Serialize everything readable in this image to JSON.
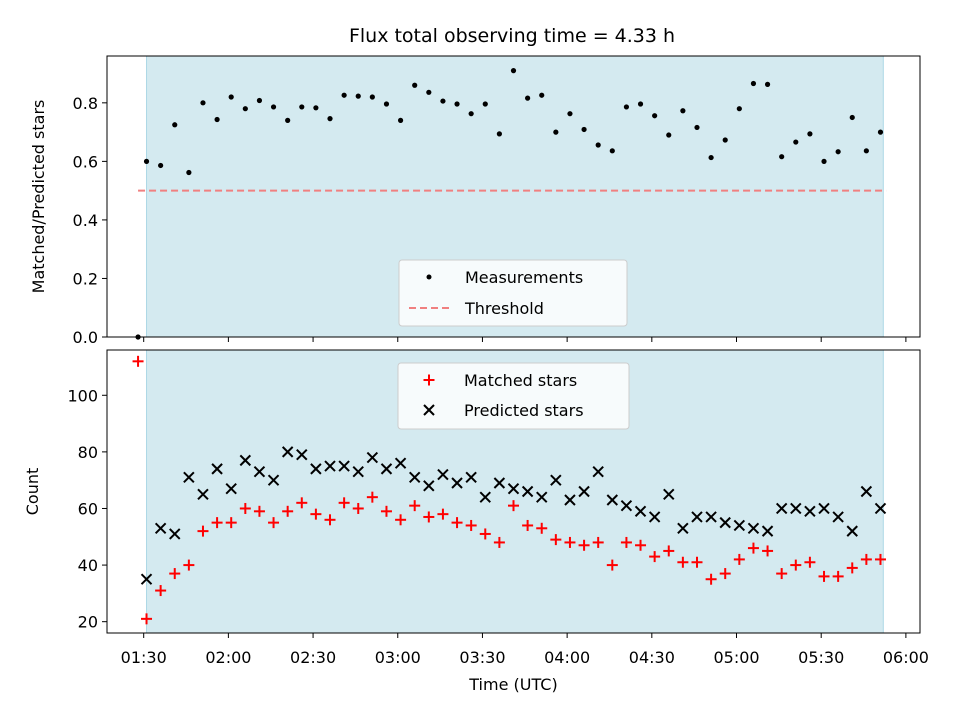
{
  "chart_data": {
    "type": "scatter",
    "title": "Flux total observing time = 4.33 h",
    "xlabel": "Time (UTC)",
    "x_ticks": [
      "01:30",
      "02:00",
      "02:30",
      "03:00",
      "03:30",
      "04:00",
      "04:30",
      "05:00",
      "05:30",
      "06:00"
    ],
    "x_range": [
      "01:17",
      "06:05"
    ],
    "observing_window": {
      "start": "01:31",
      "end": "05:52",
      "color": "#d4eaf0"
    },
    "panels": [
      {
        "name": "ratio",
        "ylabel": "Matched/Predicted stars",
        "ylim": [
          0,
          0.96
        ],
        "y_ticks": [
          "0.0",
          "0.2",
          "0.4",
          "0.6",
          "0.8"
        ],
        "legend": {
          "location": "lower center",
          "entries": [
            "Measurements",
            "Threshold"
          ]
        },
        "series": [
          {
            "name": "Measurements",
            "marker": "dot",
            "color": "#000000",
            "points": [
              [
                "01:28",
                0.0
              ],
              [
                "01:31",
                0.6
              ],
              [
                "01:36",
                0.586
              ],
              [
                "01:41",
                0.725
              ],
              [
                "01:46",
                0.562
              ],
              [
                "01:51",
                0.8
              ],
              [
                "01:56",
                0.743
              ],
              [
                "02:01",
                0.82
              ],
              [
                "02:06",
                0.78
              ],
              [
                "02:11",
                0.808
              ],
              [
                "02:16",
                0.786
              ],
              [
                "02:21",
                0.74
              ],
              [
                "02:26",
                0.786
              ],
              [
                "02:31",
                0.783
              ],
              [
                "02:36",
                0.746
              ],
              [
                "02:41",
                0.826
              ],
              [
                "02:46",
                0.823
              ],
              [
                "02:51",
                0.82
              ],
              [
                "02:56",
                0.796
              ],
              [
                "03:01",
                0.74
              ],
              [
                "03:06",
                0.86
              ],
              [
                "03:11",
                0.836
              ],
              [
                "03:16",
                0.806
              ],
              [
                "03:21",
                0.796
              ],
              [
                "03:26",
                0.763
              ],
              [
                "03:31",
                0.796
              ],
              [
                "03:36",
                0.694
              ],
              [
                "03:41",
                0.91
              ],
              [
                "03:46",
                0.816
              ],
              [
                "03:51",
                0.826
              ],
              [
                "03:56",
                0.7
              ],
              [
                "04:01",
                0.763
              ],
              [
                "04:06",
                0.709
              ],
              [
                "04:11",
                0.656
              ],
              [
                "04:16",
                0.636
              ],
              [
                "04:21",
                0.786
              ],
              [
                "04:26",
                0.796
              ],
              [
                "04:31",
                0.756
              ],
              [
                "04:36",
                0.69
              ],
              [
                "04:41",
                0.773
              ],
              [
                "04:46",
                0.716
              ],
              [
                "04:51",
                0.613
              ],
              [
                "04:56",
                0.673
              ],
              [
                "05:01",
                0.78
              ],
              [
                "05:06",
                0.866
              ],
              [
                "05:11",
                0.863
              ],
              [
                "05:16",
                0.616
              ],
              [
                "05:21",
                0.666
              ],
              [
                "05:26",
                0.694
              ],
              [
                "05:31",
                0.6
              ],
              [
                "05:36",
                0.633
              ],
              [
                "05:41",
                0.75
              ],
              [
                "05:46",
                0.636
              ],
              [
                "05:51",
                0.7
              ]
            ]
          },
          {
            "name": "Threshold",
            "style": "dashed-line",
            "color": "#f08080",
            "x_range": [
              "01:28",
              "05:53"
            ],
            "y": 0.5
          }
        ]
      },
      {
        "name": "counts",
        "ylabel": "Count",
        "ylim": [
          16,
          116
        ],
        "y_ticks": [
          "20",
          "40",
          "60",
          "80",
          "100"
        ],
        "legend": {
          "location": "upper center",
          "entries": [
            "Matched stars",
            "Predicted stars"
          ]
        },
        "series": [
          {
            "name": "Matched stars",
            "marker": "plus",
            "color": "#ff0000",
            "points": [
              [
                "01:28",
                112
              ],
              [
                "01:31",
                21
              ],
              [
                "01:36",
                31
              ],
              [
                "01:41",
                37
              ],
              [
                "01:46",
                40
              ],
              [
                "01:51",
                52
              ],
              [
                "01:56",
                55
              ],
              [
                "02:01",
                55
              ],
              [
                "02:06",
                60
              ],
              [
                "02:11",
                59
              ],
              [
                "02:16",
                55
              ],
              [
                "02:21",
                59
              ],
              [
                "02:26",
                62
              ],
              [
                "02:31",
                58
              ],
              [
                "02:36",
                56
              ],
              [
                "02:41",
                62
              ],
              [
                "02:46",
                60
              ],
              [
                "02:51",
                64
              ],
              [
                "02:56",
                59
              ],
              [
                "03:01",
                56
              ],
              [
                "03:06",
                61
              ],
              [
                "03:11",
                57
              ],
              [
                "03:16",
                58
              ],
              [
                "03:21",
                55
              ],
              [
                "03:26",
                54
              ],
              [
                "03:31",
                51
              ],
              [
                "03:36",
                48
              ],
              [
                "03:41",
                61
              ],
              [
                "03:46",
                54
              ],
              [
                "03:51",
                53
              ],
              [
                "03:56",
                49
              ],
              [
                "04:01",
                48
              ],
              [
                "04:06",
                47
              ],
              [
                "04:11",
                48
              ],
              [
                "04:16",
                40
              ],
              [
                "04:21",
                48
              ],
              [
                "04:26",
                47
              ],
              [
                "04:31",
                43
              ],
              [
                "04:36",
                45
              ],
              [
                "04:41",
                41
              ],
              [
                "04:46",
                41
              ],
              [
                "04:51",
                35
              ],
              [
                "04:56",
                37
              ],
              [
                "05:01",
                42
              ],
              [
                "05:06",
                46
              ],
              [
                "05:11",
                45
              ],
              [
                "05:16",
                37
              ],
              [
                "05:21",
                40
              ],
              [
                "05:26",
                41
              ],
              [
                "05:31",
                36
              ],
              [
                "05:36",
                36
              ],
              [
                "05:41",
                39
              ],
              [
                "05:46",
                42
              ],
              [
                "05:51",
                42
              ]
            ]
          },
          {
            "name": "Predicted stars",
            "marker": "x",
            "color": "#000000",
            "points": [
              [
                "01:31",
                35
              ],
              [
                "01:36",
                53
              ],
              [
                "01:41",
                51
              ],
              [
                "01:46",
                71
              ],
              [
                "01:51",
                65
              ],
              [
                "01:56",
                74
              ],
              [
                "02:01",
                67
              ],
              [
                "02:06",
                77
              ],
              [
                "02:11",
                73
              ],
              [
                "02:16",
                70
              ],
              [
                "02:21",
                80
              ],
              [
                "02:26",
                79
              ],
              [
                "02:31",
                74
              ],
              [
                "02:36",
                75
              ],
              [
                "02:41",
                75
              ],
              [
                "02:46",
                73
              ],
              [
                "02:51",
                78
              ],
              [
                "02:56",
                74
              ],
              [
                "03:01",
                76
              ],
              [
                "03:06",
                71
              ],
              [
                "03:11",
                68
              ],
              [
                "03:16",
                72
              ],
              [
                "03:21",
                69
              ],
              [
                "03:26",
                71
              ],
              [
                "03:31",
                64
              ],
              [
                "03:36",
                69
              ],
              [
                "03:41",
                67
              ],
              [
                "03:46",
                66
              ],
              [
                "03:51",
                64
              ],
              [
                "03:56",
                70
              ],
              [
                "04:01",
                63
              ],
              [
                "04:06",
                66
              ],
              [
                "04:11",
                73
              ],
              [
                "04:16",
                63
              ],
              [
                "04:21",
                61
              ],
              [
                "04:26",
                59
              ],
              [
                "04:31",
                57
              ],
              [
                "04:36",
                65
              ],
              [
                "04:41",
                53
              ],
              [
                "04:46",
                57
              ],
              [
                "04:51",
                57
              ],
              [
                "04:56",
                55
              ],
              [
                "05:01",
                54
              ],
              [
                "05:06",
                53
              ],
              [
                "05:11",
                52
              ],
              [
                "05:16",
                60
              ],
              [
                "05:21",
                60
              ],
              [
                "05:26",
                59
              ],
              [
                "05:31",
                60
              ],
              [
                "05:36",
                57
              ],
              [
                "05:41",
                52
              ],
              [
                "05:46",
                66
              ],
              [
                "05:51",
                60
              ]
            ]
          }
        ]
      }
    ]
  }
}
